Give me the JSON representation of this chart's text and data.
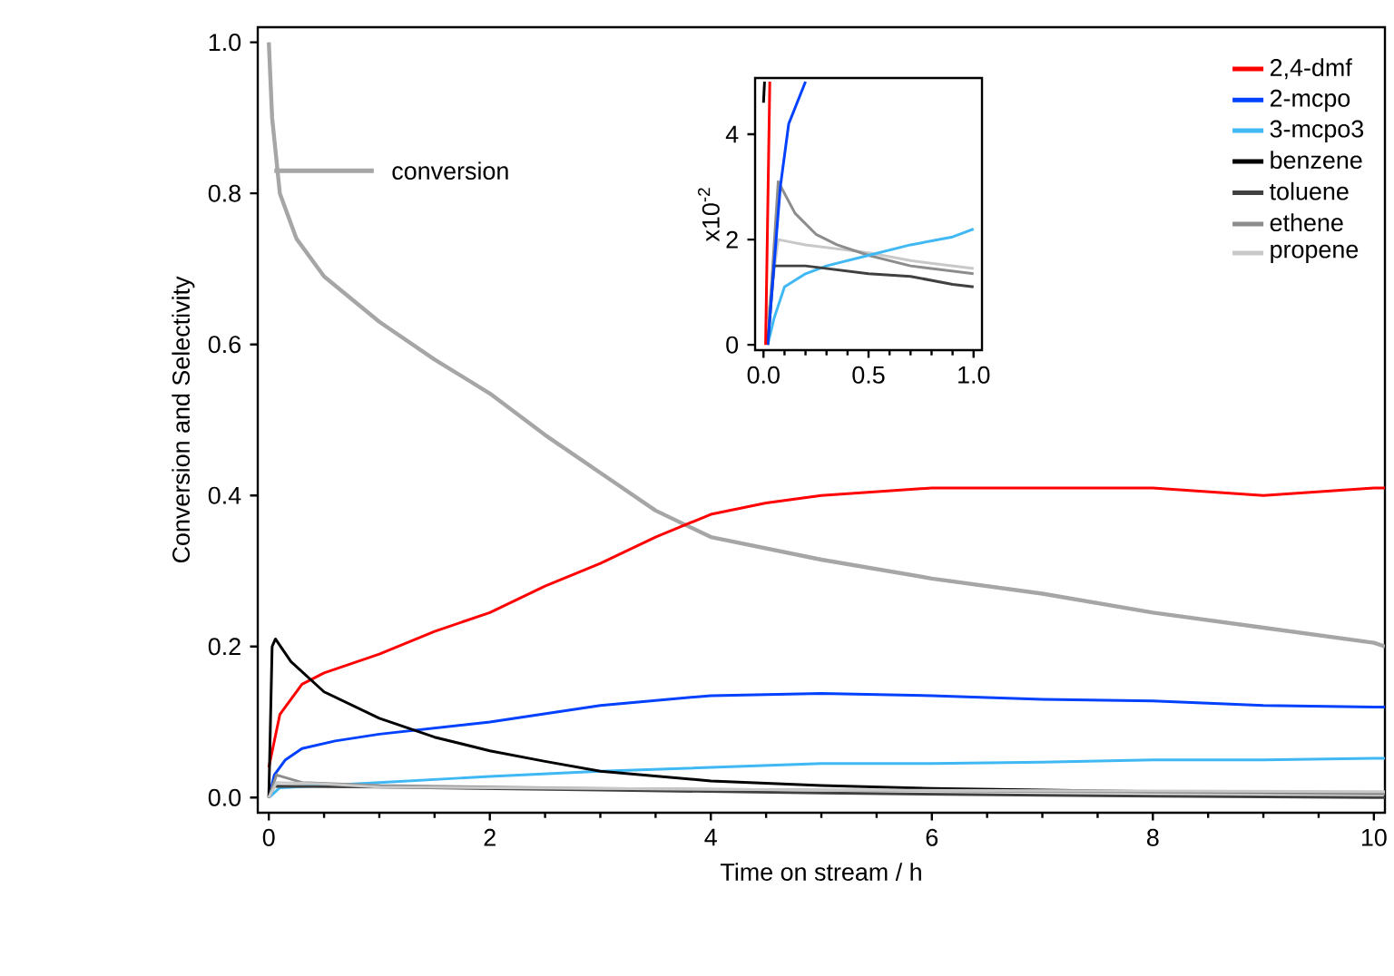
{
  "chart_data": [
    {
      "type": "line",
      "xlabel": "Time on stream / h",
      "ylabel": "Conversion and Selectivity",
      "xlim": [
        -0.1,
        10.1
      ],
      "ylim": [
        -0.02,
        1.02
      ],
      "xticks": [
        0,
        2,
        4,
        6,
        8,
        10
      ],
      "yticks": [
        {
          "value": 0,
          "label": "0.0"
        },
        {
          "value": 0.2,
          "label": "0.2"
        },
        {
          "value": 0.4,
          "label": "0.4"
        },
        {
          "value": 0.6,
          "label": "0.6"
        },
        {
          "value": 0.8,
          "label": "0.8"
        },
        {
          "value": 1,
          "label": "1.0"
        }
      ],
      "legend": "top right",
      "series": [
        {
          "name": "conversion",
          "color": "#a6a6a6",
          "x": [
            0,
            0.03,
            0.1,
            0.25,
            0.5,
            1,
            1.5,
            2,
            2.5,
            3,
            3.5,
            4,
            5,
            6,
            7,
            8,
            9,
            10,
            10.1
          ],
          "values": [
            1.0,
            0.9,
            0.8,
            0.74,
            0.69,
            0.63,
            0.58,
            0.535,
            0.48,
            0.43,
            0.38,
            0.345,
            0.315,
            0.29,
            0.27,
            0.245,
            0.225,
            0.205,
            0.2
          ]
        },
        {
          "name": "2,4-dmf",
          "color": "#ff0000",
          "x": [
            0,
            0.1,
            0.3,
            0.5,
            1,
            1.5,
            2,
            2.5,
            3,
            3.5,
            4,
            4.5,
            5,
            6,
            7,
            8,
            9,
            10,
            10.1
          ],
          "values": [
            0.04,
            0.11,
            0.15,
            0.165,
            0.19,
            0.22,
            0.245,
            0.28,
            0.31,
            0.345,
            0.375,
            0.39,
            0.4,
            0.41,
            0.41,
            0.41,
            0.4,
            0.41,
            0.41
          ]
        },
        {
          "name": "2-mcpo",
          "color": "#0040ff",
          "x": [
            0,
            0.05,
            0.15,
            0.3,
            0.6,
            1,
            2,
            3,
            4,
            5,
            6,
            7,
            8,
            9,
            10,
            10.1
          ],
          "values": [
            0,
            0.03,
            0.05,
            0.065,
            0.075,
            0.084,
            0.1,
            0.122,
            0.135,
            0.138,
            0.135,
            0.13,
            0.128,
            0.122,
            0.12,
            0.12
          ]
        },
        {
          "name": "3-mcpo3",
          "color": "#3fb8f4",
          "x": [
            0,
            0.1,
            0.5,
            1,
            2,
            3,
            4,
            5,
            6,
            7,
            8,
            9,
            10,
            10.1
          ],
          "values": [
            0,
            0.013,
            0.016,
            0.02,
            0.028,
            0.035,
            0.04,
            0.045,
            0.045,
            0.047,
            0.05,
            0.05,
            0.052,
            0.052
          ]
        },
        {
          "name": "benzene",
          "color": "#000000",
          "x": [
            0,
            0.03,
            0.06,
            0.2,
            0.5,
            1,
            1.5,
            2,
            2.5,
            3,
            4,
            5,
            6,
            7,
            8,
            10,
            10.1
          ],
          "values": [
            0,
            0.2,
            0.21,
            0.18,
            0.14,
            0.105,
            0.08,
            0.062,
            0.048,
            0.035,
            0.022,
            0.016,
            0.012,
            0.01,
            0.008,
            0.006,
            0.006
          ]
        },
        {
          "name": "toluene",
          "color": "#404040",
          "x": [
            0,
            0.05,
            1,
            3,
            5,
            7,
            10,
            10.1
          ],
          "values": [
            0,
            0.015,
            0.014,
            0.01,
            0.006,
            0.003,
            0,
            0
          ]
        },
        {
          "name": "ethene",
          "color": "#8c8c8c",
          "x": [
            0,
            0.07,
            0.3,
            1,
            3,
            5,
            10,
            10.1
          ],
          "values": [
            0,
            0.03,
            0.02,
            0.016,
            0.012,
            0.01,
            0.005,
            0.005
          ]
        },
        {
          "name": "propene",
          "color": "#c8c8c8",
          "x": [
            0,
            0.07,
            0.5,
            1,
            3,
            5,
            10,
            10.1
          ],
          "values": [
            0,
            0.02,
            0.018,
            0.014,
            0.012,
            0.01,
            0.008,
            0.008
          ]
        }
      ]
    },
    {
      "type": "line",
      "ylabel": "x10$^{-2}$",
      "xlim": [
        -0.04,
        1.04
      ],
      "ylim": [
        -0.1,
        5.07
      ],
      "xticks": [
        {
          "value": 0,
          "label": "0.0"
        },
        {
          "value": 0.5,
          "label": "0.5"
        },
        {
          "value": 1,
          "label": "1.0"
        }
      ],
      "yticks": [
        0,
        2,
        4
      ],
      "series": [
        {
          "color": "#c8c8c8",
          "x": [
            0.02,
            0.07,
            0.2,
            0.5,
            0.7,
            1
          ],
          "values": [
            0.5,
            2,
            1.9,
            1.75,
            1.6,
            1.45
          ]
        },
        {
          "color": "#8c8c8c",
          "x": [
            0.02,
            0.07,
            0.15,
            0.25,
            0.35,
            0.5,
            0.7,
            1
          ],
          "values": [
            0,
            3.1,
            2.5,
            2.1,
            1.9,
            1.7,
            1.5,
            1.35
          ]
        },
        {
          "color": "#3fb8f4",
          "x": [
            0.02,
            0.05,
            0.1,
            0.2,
            0.3,
            0.5,
            0.7,
            0.9,
            1
          ],
          "values": [
            0,
            0.5,
            1.1,
            1.35,
            1.5,
            1.7,
            1.9,
            2.05,
            2.2
          ]
        },
        {
          "color": "#404040",
          "x": [
            0.02,
            0.05,
            0.2,
            0.5,
            0.7,
            0.9,
            1
          ],
          "values": [
            0,
            1.5,
            1.5,
            1.35,
            1.3,
            1.15,
            1.1
          ]
        },
        {
          "color": "#0040ff",
          "x": [
            0.02,
            0.05,
            0.08,
            0.12,
            0.2
          ],
          "values": [
            0,
            1.5,
            3,
            4.2,
            5
          ]
        },
        {
          "color": "#ff0000",
          "x": [
            0.01,
            0.03
          ],
          "values": [
            0,
            5
          ]
        },
        {
          "color": "#000000",
          "x": [
            0.0,
            0.005
          ],
          "values": [
            4.6,
            5
          ]
        }
      ]
    }
  ]
}
